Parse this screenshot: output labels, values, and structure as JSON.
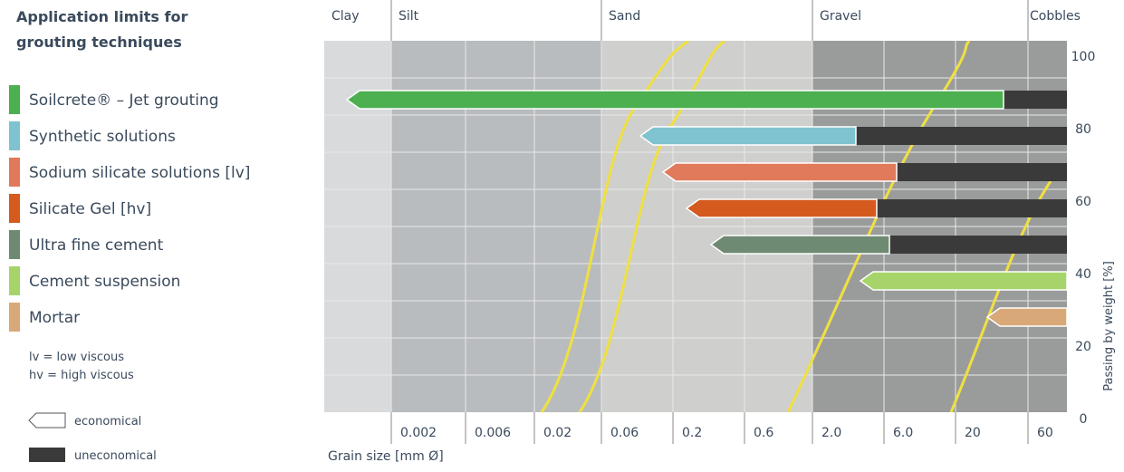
{
  "title": "Application limits for grouting techniques",
  "legend": [
    {
      "label": "Soilcrete® – Jet grouting",
      "color": "#4caf50"
    },
    {
      "label": "Synthetic solutions",
      "color": "#7ec3cf"
    },
    {
      "label": "Sodium silicate solutions [lv]",
      "color": "#e07a5a"
    },
    {
      "label": "Silicate Gel [hv]",
      "color": "#d45a1e"
    },
    {
      "label": "Ultra fine cement",
      "color": "#6f8a72"
    },
    {
      "label": "Cement suspension",
      "color": "#a6d46a"
    },
    {
      "label": "Mortar",
      "color": "#d9a878"
    }
  ],
  "notes": [
    "lv = low viscous",
    "hv = high viscous"
  ],
  "key": [
    "economical",
    "uneconomical"
  ],
  "soil_classes": [
    "Clay",
    "Silt",
    "Sand",
    "Gravel",
    "Cobbles"
  ],
  "grain_sizes": [
    "0.002",
    "0.006",
    "0.02",
    "0.06",
    "0.2",
    "0.6",
    "2.0",
    "6.0",
    "20",
    "60"
  ],
  "x_axis_label": "Grain size [mm Ø]",
  "y_axis_label": "Passing by weight [%]",
  "yticks": [
    0,
    20,
    40,
    60,
    80,
    100
  ]
}
